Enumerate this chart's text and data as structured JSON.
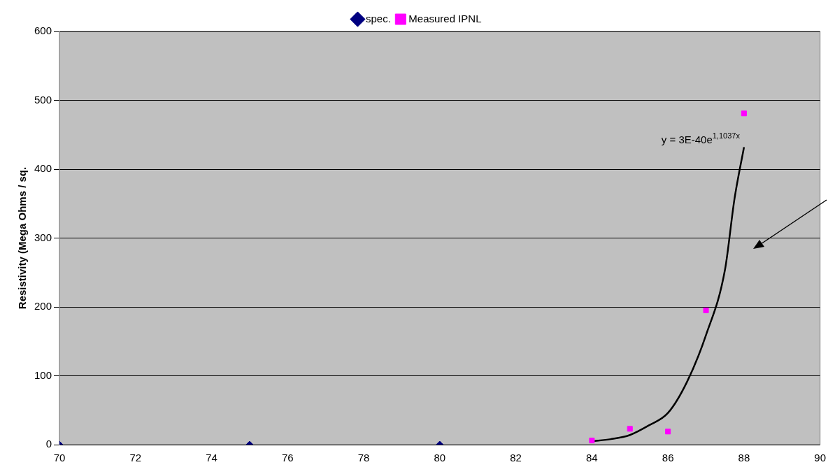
{
  "chart_data": {
    "type": "scatter",
    "ylabel": "Resistivity (Mega Ohms / sq.",
    "xlim": [
      70,
      90
    ],
    "xticks": [
      70,
      72,
      74,
      76,
      78,
      80,
      82,
      84,
      86,
      88,
      90
    ],
    "ylim": [
      0,
      600
    ],
    "yticks": [
      0,
      100,
      200,
      300,
      400,
      500,
      600
    ],
    "grid": "y",
    "legend": "top",
    "annotations": [
      {
        "text": "y = 3E-40e$^{1,1037x}$",
        "x": 88,
        "y": 432
      }
    ],
    "series": [
      {
        "name": "spec.",
        "marker": "diamond",
        "color": "#000080",
        "x": [
          70,
          75,
          80
        ],
        "values": [
          0,
          0,
          0
        ]
      },
      {
        "name": "Measured IPNL",
        "marker": "square",
        "color": "#ff00ff",
        "x": [
          84,
          85,
          86,
          87,
          88
        ],
        "values": [
          6,
          23,
          19,
          195,
          481
        ]
      },
      {
        "type": "line",
        "marker": "none",
        "color": "#000000",
        "x": [
          84,
          84.5,
          85,
          85.5,
          86,
          86.5,
          87,
          87.5,
          87.75,
          88
        ],
        "values": [
          5,
          8,
          14,
          28,
          46,
          91,
          159,
          254,
          357,
          432
        ]
      }
    ]
  }
}
